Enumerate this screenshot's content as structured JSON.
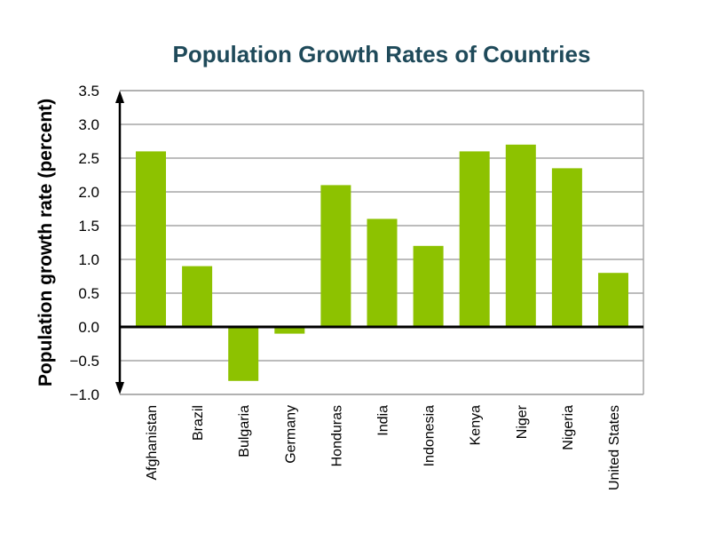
{
  "chart_data": {
    "type": "bar",
    "title": "Population Growth Rates of Countries",
    "xlabel": "",
    "ylabel": "Population growth rate (percent)",
    "ylim": [
      -1.0,
      3.5
    ],
    "yticks": [
      -1.0,
      -0.5,
      0.0,
      0.5,
      1.0,
      1.5,
      2.0,
      2.5,
      3.0,
      3.5
    ],
    "ytick_labels": [
      "−1.0",
      "−0.5",
      "0.0",
      "0.5",
      "1.0",
      "1.5",
      "2.0",
      "2.5",
      "3.0",
      "3.5"
    ],
    "grid": true,
    "categories": [
      "Afghanistan",
      "Brazil",
      "Bulgaria",
      "Germany",
      "Honduras",
      "India",
      "Indonesia",
      "Kenya",
      "Niger",
      "Nigeria",
      "United States"
    ],
    "values": [
      2.6,
      0.9,
      -0.8,
      -0.1,
      2.1,
      1.6,
      1.2,
      2.6,
      2.7,
      2.35,
      0.8
    ],
    "colors": {
      "bar": "#8dc200",
      "title": "#1f4a5a",
      "grid": "#a6a6a6",
      "axis": "#000000"
    }
  }
}
